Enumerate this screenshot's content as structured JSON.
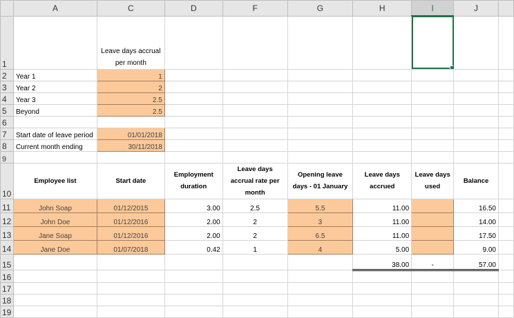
{
  "columns": [
    "A",
    "C",
    "D",
    "F",
    "G",
    "H",
    "I",
    "J"
  ],
  "rows": [
    "1",
    "2",
    "3",
    "4",
    "5",
    "6",
    "7",
    "8",
    "9",
    "10",
    "11",
    "12",
    "13",
    "14",
    "15",
    "16",
    "17",
    "18",
    "19"
  ],
  "selected_cell": "I1",
  "accrual": {
    "header": "Leave days accrual per month",
    "items": [
      {
        "label": "Year 1",
        "value": "1"
      },
      {
        "label": "Year 2",
        "value": "2"
      },
      {
        "label": "Year 3",
        "value": "2.5"
      },
      {
        "label": "Beyond",
        "value": "2.5"
      }
    ]
  },
  "start_date": {
    "label": "Start date of leave period",
    "value": "01/01/2018"
  },
  "current_month": {
    "label": "Current month ending",
    "value": "30/11/2018"
  },
  "table": {
    "headers": [
      "Employee list",
      "Start date",
      "Employment duration",
      "Leave days accrual rate per month",
      "Opening leave days - 01 January",
      "Leave days accrued",
      "Leave days used",
      "Balance"
    ],
    "rows": [
      [
        "John Soap",
        "01/12/2015",
        "3.00",
        "2.5",
        "5.5",
        "11.00",
        "",
        "16.50"
      ],
      [
        "John Doe",
        "01/12/2016",
        "2.00",
        "2",
        "3",
        "11.00",
        "",
        "14.00"
      ],
      [
        "Jane Soap",
        "01/12/2016",
        "2.00",
        "2",
        "6.5",
        "11.00",
        "",
        "17.50"
      ],
      [
        "Jane Doe",
        "01/07/2018",
        "0.42",
        "1",
        "4",
        "5.00",
        "",
        "9.00"
      ]
    ],
    "totals": {
      "accrued": "38.00",
      "used": "-",
      "balance": "57.00"
    }
  },
  "colors": {
    "input_fill": "#fcc99a",
    "selection": "#217346"
  }
}
